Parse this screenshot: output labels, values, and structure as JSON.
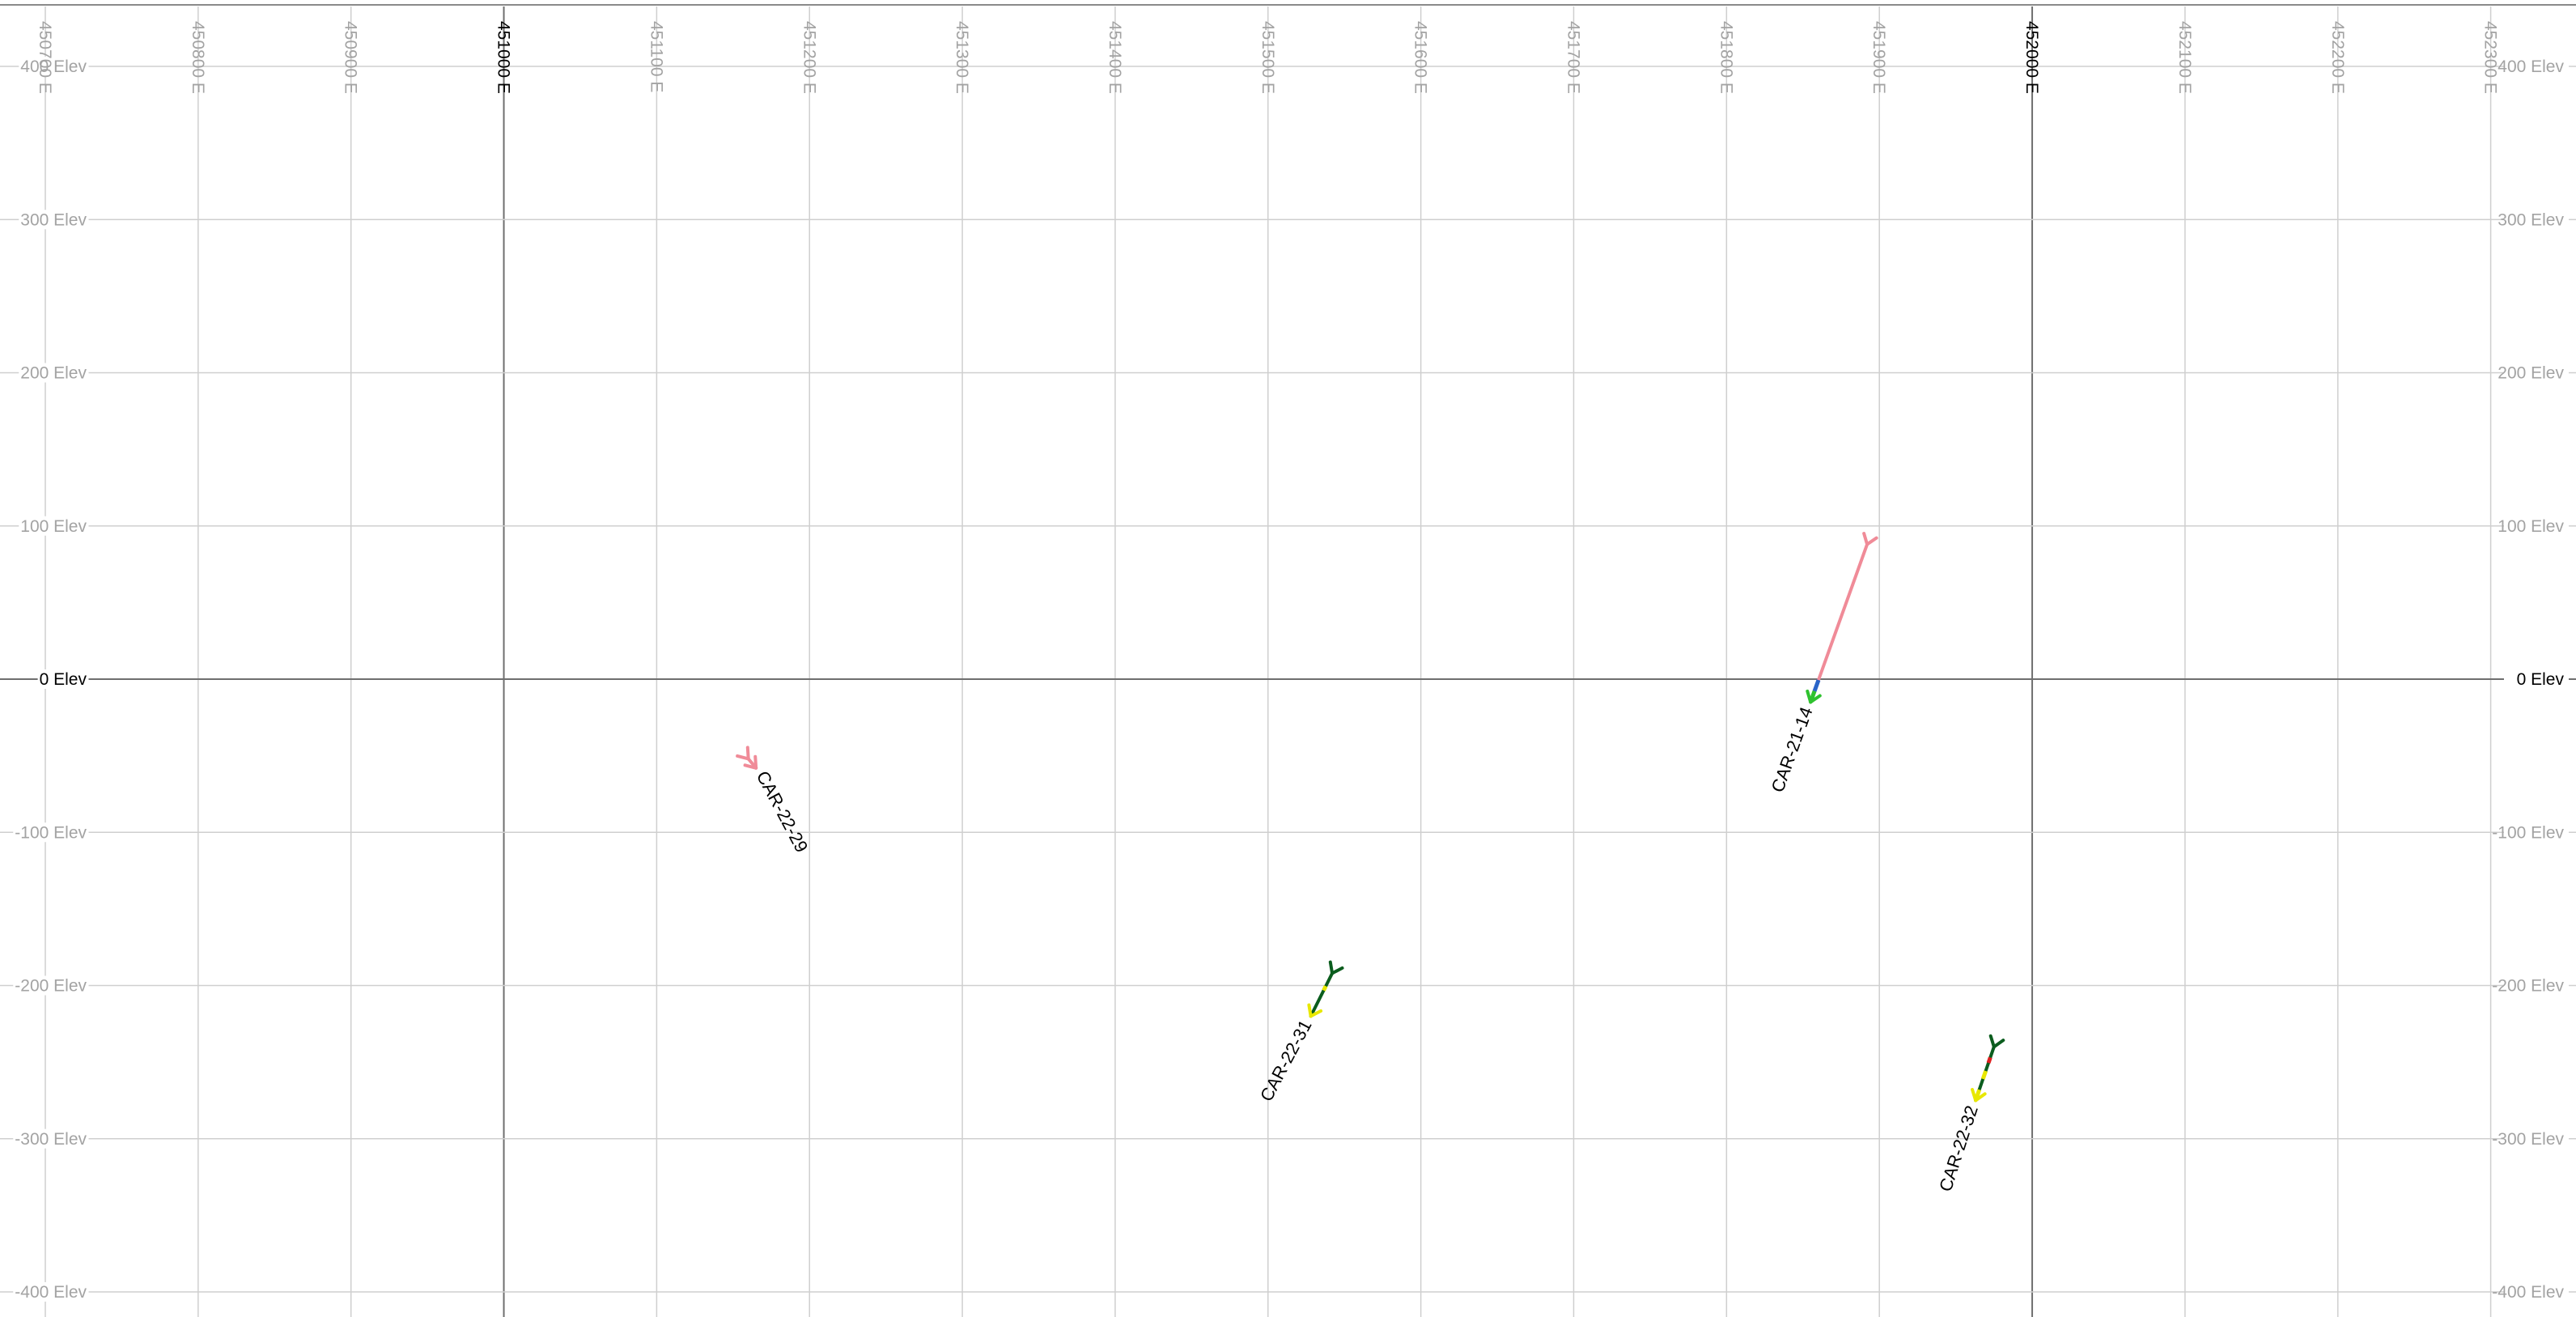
{
  "view": {
    "easting_ticks": [
      {
        "value": 450700,
        "label": "450700 E",
        "major": false
      },
      {
        "value": 450800,
        "label": "450800 E",
        "major": false
      },
      {
        "value": 450900,
        "label": "450900 E",
        "major": false
      },
      {
        "value": 451000,
        "label": "451000 E",
        "major": true
      },
      {
        "value": 451100,
        "label": "451100 E",
        "major": false
      },
      {
        "value": 451200,
        "label": "451200 E",
        "major": false
      },
      {
        "value": 451300,
        "label": "451300 E",
        "major": false
      },
      {
        "value": 451400,
        "label": "451400 E",
        "major": false
      },
      {
        "value": 451500,
        "label": "451500 E",
        "major": false
      },
      {
        "value": 451600,
        "label": "451600 E",
        "major": false
      },
      {
        "value": 451700,
        "label": "451700 E",
        "major": false
      },
      {
        "value": 451800,
        "label": "451800 E",
        "major": false
      },
      {
        "value": 451900,
        "label": "451900 E",
        "major": false
      },
      {
        "value": 452000,
        "label": "452000 E",
        "major": true
      },
      {
        "value": 452100,
        "label": "452100 E",
        "major": false
      },
      {
        "value": 452200,
        "label": "452200 E",
        "major": false
      },
      {
        "value": 452300,
        "label": "452300 E",
        "major": false
      }
    ],
    "elevation_ticks": [
      {
        "value": 400,
        "label": "400 Elev",
        "major": false
      },
      {
        "value": 300,
        "label": "300 Elev",
        "major": false
      },
      {
        "value": 200,
        "label": "200 Elev",
        "major": false
      },
      {
        "value": 100,
        "label": "100 Elev",
        "major": false
      },
      {
        "value": 0,
        "label": "0 Elev",
        "major": true
      },
      {
        "value": -100,
        "label": "-100 Elev",
        "major": false
      },
      {
        "value": -200,
        "label": "-200 Elev",
        "major": false
      },
      {
        "value": -300,
        "label": "-300 Elev",
        "major": false
      },
      {
        "value": -400,
        "label": "-400 Elev",
        "major": false
      }
    ],
    "colors": {
      "minor_grid": "#cfcfcf",
      "major_grid": "#6f6f6f",
      "minor_label": "#a3a3a3",
      "major_label": "#000000",
      "pink": "#f08b98",
      "dark_green": "#0b5d1e",
      "bright_green": "#2fc22f",
      "blue": "#2a64c8",
      "yellow": "#e8e800",
      "red": "#e02020",
      "black": "#000000"
    }
  },
  "drillholes": [
    {
      "name": "CAR-22-29",
      "collar": {
        "e": 451160,
        "z": -52
      },
      "end": {
        "e": 451165,
        "z": -58
      },
      "color": "pink",
      "segments": [],
      "label_angle": 62
    },
    {
      "name": "CAR-22-31",
      "collar": {
        "e": 451542,
        "z": -192
      },
      "end": {
        "e": 451528,
        "z": -220
      },
      "color": "dark_green",
      "segments": [
        {
          "from": 0.3,
          "to": 0.4,
          "color": "yellow"
        }
      ],
      "label_angle": -62
    },
    {
      "name": "CAR-21-14",
      "collar": {
        "e": 451892,
        "z": 88
      },
      "end": {
        "e": 451855,
        "z": -15
      },
      "color": "pink",
      "segments": [
        {
          "from": 0.86,
          "to": 0.93,
          "color": "blue"
        },
        {
          "from": 0.93,
          "to": 1.0,
          "color": "bright_green"
        }
      ],
      "label_angle": -70
    },
    {
      "name": "CAR-22-32",
      "collar": {
        "e": 451975,
        "z": -240
      },
      "end": {
        "e": 451963,
        "z": -275
      },
      "color": "dark_green",
      "segments": [
        {
          "from": 0.2,
          "to": 0.3,
          "color": "red"
        },
        {
          "from": 0.45,
          "to": 0.6,
          "color": "yellow"
        },
        {
          "from": 0.8,
          "to": 1.0,
          "color": "yellow"
        }
      ],
      "label_angle": -72
    }
  ]
}
